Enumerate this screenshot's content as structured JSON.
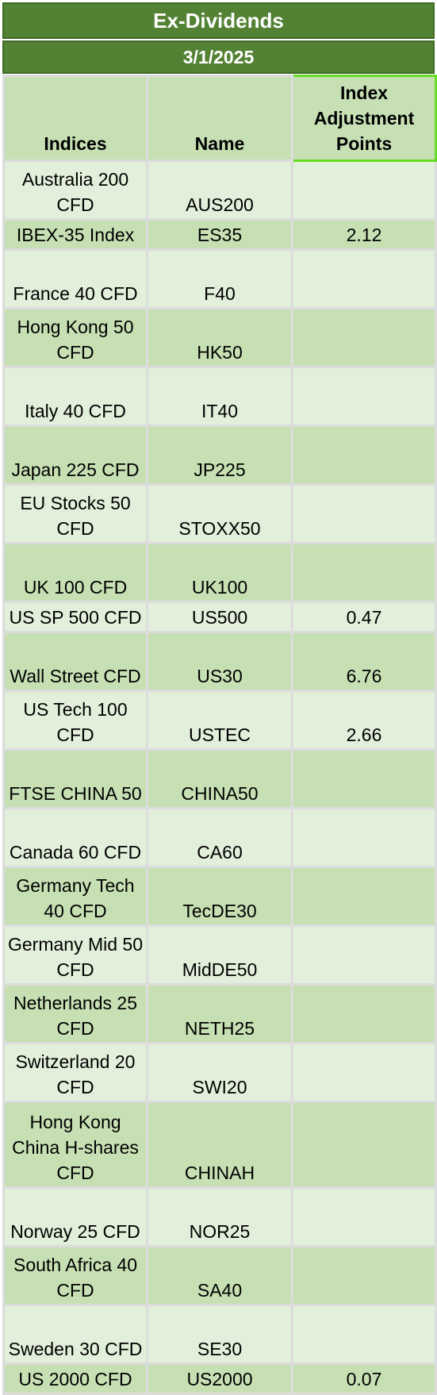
{
  "title": "Ex-Dividends",
  "date": "3/1/2025",
  "columns": {
    "indices": "Indices",
    "name": "Name",
    "adjustment": "Index Adjustment Points"
  },
  "rows": [
    {
      "index": "Australia 200 CFD",
      "name": "AUS200",
      "points": ""
    },
    {
      "index": "IBEX-35 Index",
      "name": "ES35",
      "points": "2.12"
    },
    {
      "index": "France 40 CFD",
      "name": "F40",
      "points": ""
    },
    {
      "index": "Hong Kong 50 CFD",
      "name": "HK50",
      "points": ""
    },
    {
      "index": "Italy 40 CFD",
      "name": "IT40",
      "points": ""
    },
    {
      "index": "Japan 225 CFD",
      "name": "JP225",
      "points": ""
    },
    {
      "index": "EU Stocks 50 CFD",
      "name": "STOXX50",
      "points": ""
    },
    {
      "index": "UK 100 CFD",
      "name": "UK100",
      "points": ""
    },
    {
      "index": "US SP 500 CFD",
      "name": "US500",
      "points": "0.47"
    },
    {
      "index": "Wall Street CFD",
      "name": "US30",
      "points": "6.76"
    },
    {
      "index": "US Tech 100 CFD",
      "name": "USTEC",
      "points": "2.66"
    },
    {
      "index": "FTSE CHINA 50",
      "name": "CHINA50",
      "points": ""
    },
    {
      "index": "Canada 60 CFD",
      "name": "CA60",
      "points": ""
    },
    {
      "index": "Germany Tech 40 CFD",
      "name": "TecDE30",
      "points": ""
    },
    {
      "index": "Germany Mid 50 CFD",
      "name": "MidDE50",
      "points": ""
    },
    {
      "index": "Netherlands 25 CFD",
      "name": "NETH25",
      "points": ""
    },
    {
      "index": "Switzerland 20 CFD",
      "name": "SWI20",
      "points": ""
    },
    {
      "index": "Hong Kong China H-shares CFD",
      "name": "CHINAH",
      "points": ""
    },
    {
      "index": "Norway 25 CFD",
      "name": "NOR25",
      "points": ""
    },
    {
      "index": "South Africa 40 CFD",
      "name": "SA40",
      "points": ""
    },
    {
      "index": "Sweden 30 CFD",
      "name": "SE30",
      "points": ""
    },
    {
      "index": "US 2000 CFD",
      "name": "US2000",
      "points": "0.07"
    }
  ]
}
